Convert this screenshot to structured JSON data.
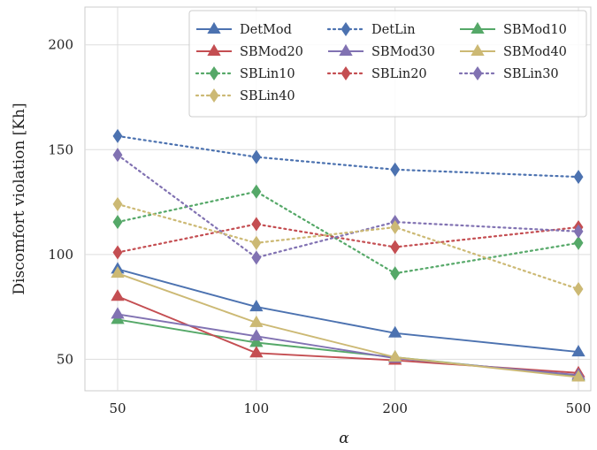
{
  "chart_data": {
    "type": "line",
    "x": [
      50,
      100,
      200,
      500
    ],
    "x_tick_labels": [
      "50",
      "100",
      "200",
      "500"
    ],
    "xscale": "log",
    "xlabel": "α",
    "ylabel": "Discomfort violation [Kh]",
    "ylim": [
      35,
      218
    ],
    "yticks": [
      50,
      100,
      150,
      200
    ],
    "grid": true,
    "legend_position": "top-right",
    "series": [
      {
        "name": "DetMod",
        "color": "#4c72b0",
        "style": "solid",
        "marker": "triangle",
        "values": [
          93,
          75,
          62.5,
          53.5
        ]
      },
      {
        "name": "DetLin",
        "color": "#4c72b0",
        "style": "dotted",
        "marker": "diamond",
        "values": [
          156.5,
          146.5,
          140.5,
          137
        ]
      },
      {
        "name": "SBMod10",
        "color": "#55a868",
        "style": "solid",
        "marker": "triangle",
        "values": [
          69,
          58,
          51,
          42
        ]
      },
      {
        "name": "SBMod20",
        "color": "#c44e52",
        "style": "solid",
        "marker": "triangle",
        "values": [
          80,
          53,
          49.5,
          43.5
        ]
      },
      {
        "name": "SBMod30",
        "color": "#8172b2",
        "style": "solid",
        "marker": "triangle",
        "values": [
          71.5,
          61,
          50.5,
          42.5
        ]
      },
      {
        "name": "SBMod40",
        "color": "#ccb974",
        "style": "solid",
        "marker": "triangle",
        "values": [
          91,
          67.5,
          51,
          41.5
        ]
      },
      {
        "name": "SBLin10",
        "color": "#55a868",
        "style": "dotted",
        "marker": "diamond",
        "values": [
          115.5,
          130,
          91,
          105.5
        ]
      },
      {
        "name": "SBLin20",
        "color": "#c44e52",
        "style": "dotted",
        "marker": "diamond",
        "values": [
          101,
          114.5,
          103.5,
          113
        ]
      },
      {
        "name": "SBLin30",
        "color": "#8172b2",
        "style": "dotted",
        "marker": "diamond",
        "values": [
          147.5,
          98.5,
          115.5,
          111
        ]
      },
      {
        "name": "SBLin40",
        "color": "#ccb974",
        "style": "dotted",
        "marker": "diamond",
        "values": [
          124,
          105.5,
          113,
          83.5
        ]
      }
    ],
    "legend_order": [
      "DetMod",
      "DetLin",
      "SBMod10",
      "SBMod20",
      "SBMod30",
      "SBMod40",
      "SBLin10",
      "SBLin20",
      "SBLin30",
      "SBLin40"
    ]
  }
}
